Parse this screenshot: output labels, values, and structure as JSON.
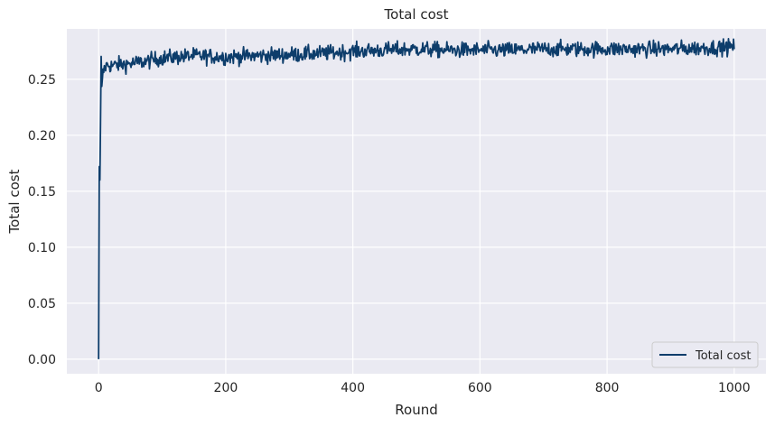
{
  "chart_data": {
    "type": "line",
    "title": "Total cost",
    "xlabel": "Round",
    "ylabel": "Total cost",
    "xlim": [
      -50,
      1050
    ],
    "ylim": [
      -0.013,
      0.295
    ],
    "xticks": [
      0,
      200,
      400,
      600,
      800,
      1000
    ],
    "xtick_labels": [
      "0",
      "200",
      "400",
      "600",
      "800",
      "1000"
    ],
    "yticks": [
      0.0,
      0.05,
      0.1,
      0.15,
      0.2,
      0.25
    ],
    "ytick_labels": [
      "0.00",
      "0.05",
      "0.10",
      "0.15",
      "0.20",
      "0.25"
    ],
    "grid": true,
    "legend_position": "lower-right",
    "series": [
      {
        "name": "Total cost",
        "color": "#0d3d6b",
        "noise": 0.0035,
        "x": [
          0,
          1,
          2,
          3,
          4,
          5,
          6,
          8,
          10,
          15,
          20,
          30,
          50,
          75,
          100,
          150,
          200,
          250,
          300,
          350,
          400,
          450,
          500,
          550,
          600,
          650,
          700,
          750,
          800,
          850,
          900,
          950,
          1000
        ],
        "values": [
          0.0,
          0.172,
          0.16,
          0.208,
          0.268,
          0.24,
          0.252,
          0.258,
          0.261,
          0.263,
          0.262,
          0.263,
          0.264,
          0.266,
          0.269,
          0.271,
          0.27,
          0.271,
          0.272,
          0.273,
          0.275,
          0.276,
          0.277,
          0.276,
          0.276,
          0.276,
          0.277,
          0.277,
          0.277,
          0.277,
          0.277,
          0.278,
          0.279
        ]
      }
    ]
  }
}
